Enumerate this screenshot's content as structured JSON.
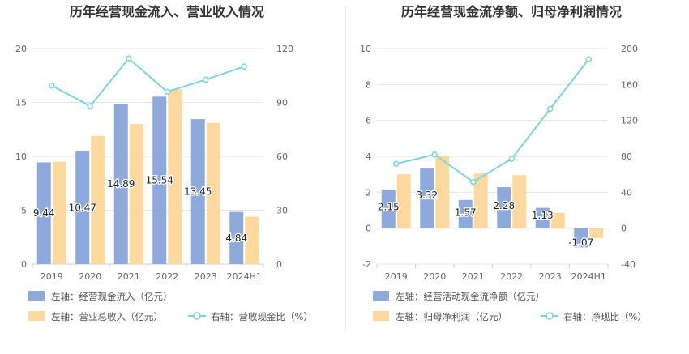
{
  "colors": {
    "bar_left": "#8eaadc",
    "bar_right": "#fdd9a0",
    "line": "#7fd3dc",
    "grid": "#e6e6e6",
    "axis_text": "#666666",
    "title_text": "#333333"
  },
  "chart_data": [
    {
      "type": "bar",
      "title": "历年经营现金流入、营业收入情况",
      "categories": [
        "2019",
        "2020",
        "2021",
        "2022",
        "2023",
        "2024H1"
      ],
      "left_axis": {
        "ylim": [
          0,
          20
        ],
        "ticks": [
          0,
          5,
          10,
          15,
          20
        ]
      },
      "right_axis": {
        "ylim": [
          0,
          120
        ],
        "ticks": [
          0,
          30,
          60,
          90,
          120
        ]
      },
      "series": [
        {
          "name": "左轴：经营现金流入（亿元）",
          "kind": "bar",
          "axis": "left",
          "values": [
            9.44,
            10.47,
            14.89,
            15.54,
            13.45,
            4.84
          ],
          "labels": [
            "9.44",
            "10.47",
            "14.89",
            "15.54",
            "13.45",
            "4.84"
          ]
        },
        {
          "name": "左轴：营业总收入（亿元）",
          "kind": "bar",
          "axis": "left",
          "values": [
            9.5,
            11.9,
            13.0,
            16.2,
            13.1,
            4.4
          ]
        },
        {
          "name": "右轴：营收现金比（%）",
          "kind": "line",
          "axis": "right",
          "values": [
            99.4,
            88.0,
            114.5,
            95.9,
            102.7,
            110.0
          ]
        }
      ],
      "legend": [
        {
          "label": "左轴：经营现金流入（亿元）",
          "kind": "bar",
          "series": 0
        },
        {
          "label": "左轴：营业总收入（亿元）",
          "kind": "bar",
          "series": 1
        },
        {
          "label": "右轴：营收现金比（%）",
          "kind": "line",
          "series": 2
        }
      ]
    },
    {
      "type": "bar",
      "title": "历年经营现金流净额、归母净利润情况",
      "categories": [
        "2019",
        "2020",
        "2021",
        "2022",
        "2023",
        "2024H1"
      ],
      "left_axis": {
        "ylim": [
          -2,
          10
        ],
        "ticks": [
          -2,
          0,
          2,
          4,
          6,
          8,
          10
        ]
      },
      "right_axis": {
        "ylim": [
          -40,
          200
        ],
        "ticks": [
          -40,
          0,
          40,
          80,
          120,
          160,
          200
        ]
      },
      "series": [
        {
          "name": "左轴：经营活动现金流净额（亿元）",
          "kind": "bar",
          "axis": "left",
          "values": [
            2.15,
            3.32,
            1.57,
            2.28,
            1.13,
            -1.07
          ],
          "labels": [
            "2.15",
            "3.32",
            "1.57",
            "2.28",
            "1.13",
            "-1.07"
          ]
        },
        {
          "name": "左轴：归母净利润（亿元）",
          "kind": "bar",
          "axis": "left",
          "values": [
            3.0,
            4.05,
            3.05,
            2.95,
            0.85,
            -0.55
          ]
        },
        {
          "name": "右轴：净现比（%）",
          "kind": "line",
          "axis": "right",
          "values": [
            71.7,
            82.0,
            51.5,
            77.3,
            132.9,
            188.0
          ]
        }
      ],
      "legend": [
        {
          "label": "左轴：经营活动现金流净额（亿元）",
          "kind": "bar",
          "series": 0
        },
        {
          "label": "左轴：归母净利润（亿元）",
          "kind": "bar",
          "series": 1
        },
        {
          "label": "右轴：净现比（%）",
          "kind": "line",
          "series": 2
        }
      ]
    }
  ]
}
